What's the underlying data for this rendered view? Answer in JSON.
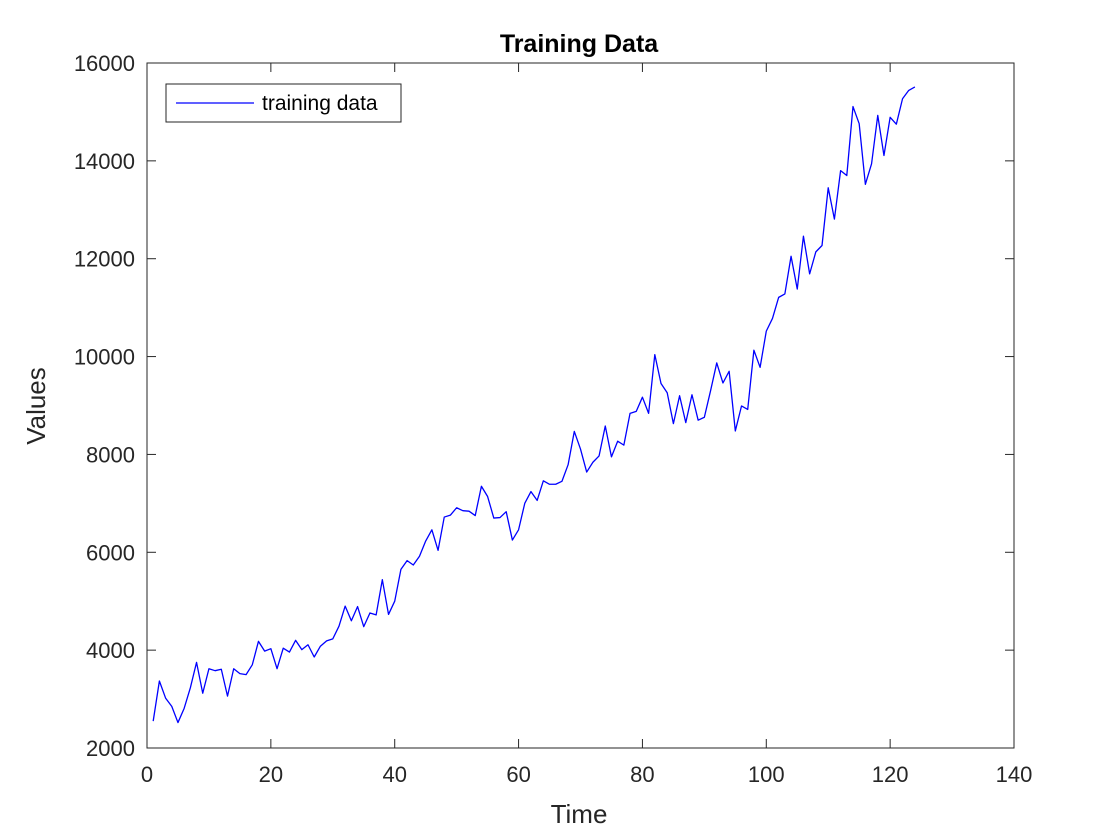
{
  "chart_data": {
    "type": "line",
    "title": "Training Data",
    "xlabel": "Time",
    "ylabel": "Values",
    "xlim": [
      0,
      140
    ],
    "ylim": [
      2000,
      16000
    ],
    "xticks": [
      0,
      20,
      40,
      60,
      80,
      100,
      120,
      140
    ],
    "yticks": [
      2000,
      4000,
      6000,
      8000,
      10000,
      12000,
      14000,
      16000
    ],
    "grid": false,
    "legend_position": "top-left",
    "series": [
      {
        "name": "training data",
        "color": "#0000ff",
        "x": [
          1,
          2,
          3,
          4,
          5,
          6,
          7,
          8,
          9,
          10,
          11,
          12,
          13,
          14,
          15,
          16,
          17,
          18,
          19,
          20,
          21,
          22,
          23,
          24,
          25,
          26,
          27,
          28,
          29,
          30,
          31,
          32,
          33,
          34,
          35,
          36,
          37,
          38,
          39,
          40,
          41,
          42,
          43,
          44,
          45,
          46,
          47,
          48,
          49,
          50,
          51,
          52,
          53,
          54,
          55,
          56,
          57,
          58,
          59,
          60,
          61,
          62,
          63,
          64,
          65,
          66,
          67,
          68,
          69,
          70,
          71,
          72,
          73,
          74,
          75,
          76,
          77,
          78,
          79,
          80,
          81,
          82,
          83,
          84,
          85,
          86,
          87,
          88,
          89,
          90,
          91,
          92,
          93,
          94,
          95,
          96,
          97,
          98,
          99,
          100,
          101,
          102,
          103,
          104,
          105,
          106,
          107,
          108,
          109,
          110,
          111,
          112,
          113,
          114,
          115,
          116,
          117,
          118,
          119,
          120,
          121,
          122,
          123,
          124
        ],
        "values": [
          2550,
          3370,
          3020,
          2850,
          2520,
          2810,
          3230,
          3750,
          3120,
          3620,
          3580,
          3610,
          3060,
          3620,
          3520,
          3500,
          3700,
          4180,
          3980,
          4030,
          3620,
          4040,
          3960,
          4200,
          4010,
          4110,
          3860,
          4080,
          4190,
          4230,
          4490,
          4900,
          4600,
          4890,
          4480,
          4760,
          4720,
          5440,
          4730,
          5000,
          5650,
          5830,
          5740,
          5920,
          6230,
          6460,
          6040,
          6720,
          6760,
          6910,
          6850,
          6840,
          6750,
          7350,
          7140,
          6700,
          6710,
          6830,
          6250,
          6460,
          7000,
          7240,
          7060,
          7460,
          7390,
          7390,
          7450,
          7790,
          8470,
          8110,
          7640,
          7840,
          7970,
          8580,
          7950,
          8270,
          8190,
          8840,
          8880,
          9170,
          8840,
          10040,
          9450,
          9260,
          8630,
          9200,
          8650,
          9220,
          8700,
          8760,
          9300,
          9870,
          9460,
          9700,
          8480,
          8990,
          8920,
          10130,
          9780,
          10520,
          10780,
          11210,
          11280,
          12050,
          11380,
          12460,
          11690,
          12140,
          12270,
          13450,
          12810,
          13800,
          13700,
          15110,
          14760,
          13520,
          13940,
          14930,
          14110,
          14890,
          14750,
          15270,
          15440,
          15510
        ]
      }
    ]
  }
}
